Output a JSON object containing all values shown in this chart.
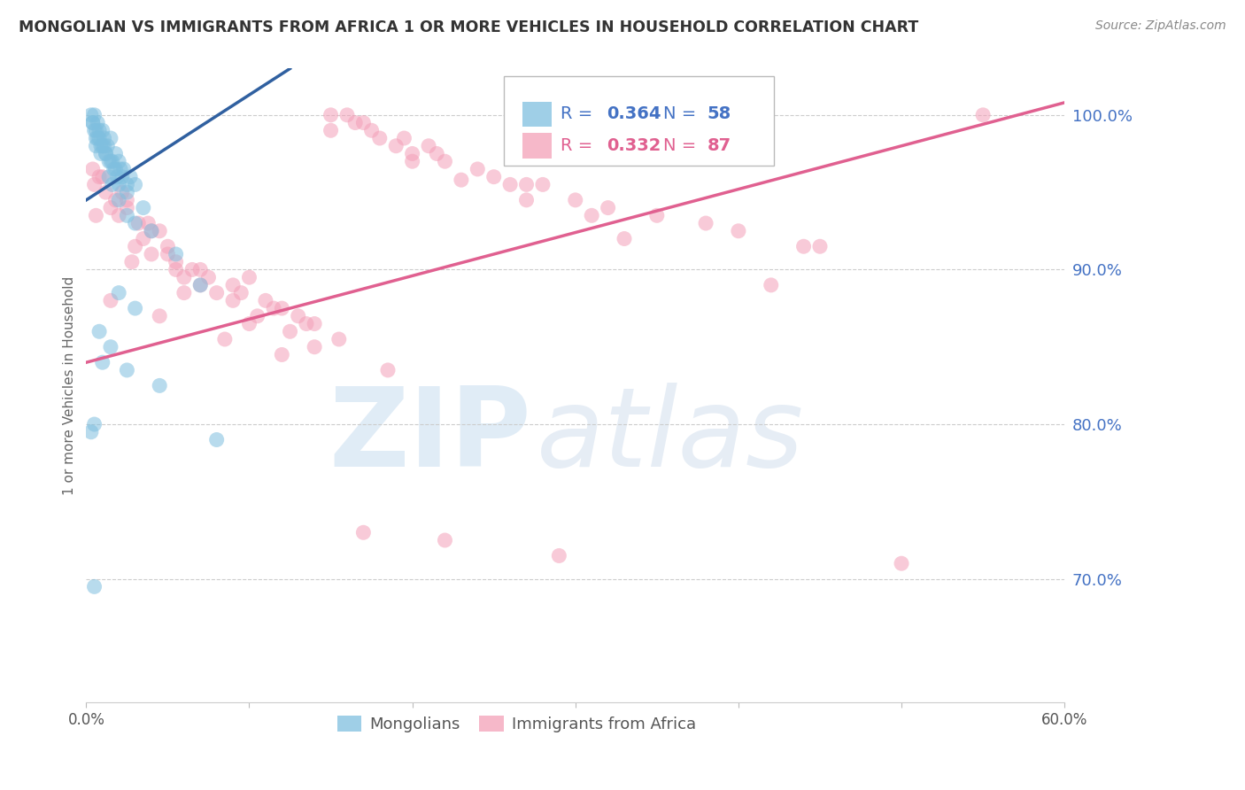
{
  "title": "MONGOLIAN VS IMMIGRANTS FROM AFRICA 1 OR MORE VEHICLES IN HOUSEHOLD CORRELATION CHART",
  "source": "Source: ZipAtlas.com",
  "ylabel": "1 or more Vehicles in Household",
  "xlim": [
    0.0,
    60.0
  ],
  "ylim": [
    62.0,
    103.0
  ],
  "yticks_right": [
    70.0,
    80.0,
    90.0,
    100.0
  ],
  "ytick_labels_right": [
    "70.0%",
    "80.0%",
    "90.0%",
    "100.0%"
  ],
  "xticks": [
    0.0,
    10.0,
    20.0,
    30.0,
    40.0,
    50.0,
    60.0
  ],
  "xtick_labels": [
    "0.0%",
    "",
    "",
    "",
    "",
    "",
    "60.0%"
  ],
  "legend_r1": "R = 0.364",
  "legend_n1": "N = 58",
  "legend_r2": "R = 0.332",
  "legend_n2": "N = 87",
  "blue_color": "#7fbfdf",
  "pink_color": "#f4a0b8",
  "blue_line_color": "#3060a0",
  "pink_line_color": "#e06090",
  "watermark_zip": "ZIP",
  "watermark_atlas": "atlas",
  "mongolians_label": "Mongolians",
  "africa_label": "Immigrants from Africa",
  "blue_scatter_x": [
    0.3,
    0.4,
    0.5,
    0.6,
    0.7,
    0.8,
    0.9,
    1.0,
    1.1,
    1.2,
    1.3,
    1.4,
    1.5,
    1.6,
    1.7,
    1.8,
    1.9,
    2.0,
    2.1,
    2.2,
    2.3,
    2.5,
    2.7,
    3.0,
    0.5,
    0.6,
    0.7,
    0.8,
    1.0,
    1.2,
    1.5,
    1.8,
    2.0,
    2.5,
    3.5,
    0.4,
    0.6,
    0.9,
    1.1,
    1.4,
    1.6,
    2.0,
    2.5,
    3.0,
    4.0,
    5.5,
    7.0,
    2.0,
    3.0,
    1.5,
    4.5,
    0.5,
    0.3,
    0.8,
    1.0,
    2.5,
    8.0,
    0.5
  ],
  "blue_scatter_y": [
    100.0,
    99.5,
    100.0,
    99.0,
    99.5,
    98.5,
    98.0,
    99.0,
    98.5,
    97.5,
    98.0,
    97.0,
    98.5,
    97.0,
    96.5,
    97.5,
    96.0,
    97.0,
    96.5,
    96.0,
    96.5,
    95.5,
    96.0,
    95.5,
    99.0,
    98.5,
    98.5,
    99.0,
    98.0,
    97.5,
    97.0,
    96.5,
    95.5,
    95.0,
    94.0,
    99.5,
    98.0,
    97.5,
    98.0,
    96.0,
    95.5,
    94.5,
    93.5,
    93.0,
    92.5,
    91.0,
    89.0,
    88.5,
    87.5,
    85.0,
    82.5,
    80.0,
    79.5,
    86.0,
    84.0,
    83.5,
    79.0,
    69.5
  ],
  "pink_scatter_x": [
    0.5,
    1.0,
    1.5,
    2.0,
    2.5,
    3.0,
    3.5,
    4.0,
    4.5,
    5.0,
    5.5,
    6.0,
    7.0,
    8.0,
    9.0,
    10.0,
    11.0,
    12.0,
    13.0,
    14.0,
    15.0,
    16.0,
    17.0,
    18.0,
    19.0,
    20.0,
    22.0,
    25.0,
    28.0,
    30.0,
    32.0,
    35.0,
    40.0,
    45.0,
    50.0,
    55.0,
    1.2,
    2.5,
    4.0,
    5.5,
    7.5,
    9.5,
    11.5,
    13.5,
    15.5,
    17.5,
    19.5,
    21.5,
    24.0,
    27.0,
    31.0,
    38.0,
    44.0,
    0.8,
    2.2,
    3.8,
    6.5,
    9.0,
    12.5,
    16.5,
    21.0,
    26.0,
    0.4,
    1.8,
    3.2,
    5.0,
    7.0,
    10.5,
    14.0,
    18.5,
    23.0,
    0.6,
    2.8,
    6.0,
    10.0,
    15.0,
    20.0,
    27.0,
    33.0,
    42.0,
    1.5,
    4.5,
    8.5,
    12.0,
    17.0,
    22.0,
    29.0
  ],
  "pink_scatter_y": [
    95.5,
    96.0,
    94.0,
    93.5,
    94.5,
    91.5,
    92.0,
    91.0,
    92.5,
    91.0,
    90.0,
    89.5,
    89.0,
    88.5,
    88.0,
    89.5,
    88.0,
    87.5,
    87.0,
    86.5,
    100.0,
    100.0,
    99.5,
    98.5,
    98.0,
    97.5,
    97.0,
    96.0,
    95.5,
    94.5,
    94.0,
    93.5,
    92.5,
    91.5,
    71.0,
    100.0,
    95.0,
    94.0,
    92.5,
    90.5,
    89.5,
    88.5,
    87.5,
    86.5,
    85.5,
    99.0,
    98.5,
    97.5,
    96.5,
    95.5,
    93.5,
    93.0,
    91.5,
    96.0,
    95.0,
    93.0,
    90.0,
    89.0,
    86.0,
    99.5,
    98.0,
    95.5,
    96.5,
    94.5,
    93.0,
    91.5,
    90.0,
    87.0,
    85.0,
    83.5,
    95.8,
    93.5,
    90.5,
    88.5,
    86.5,
    99.0,
    97.0,
    94.5,
    92.0,
    89.0,
    88.0,
    87.0,
    85.5,
    84.5,
    73.0,
    72.5,
    71.5
  ],
  "blue_trend_x": [
    0.0,
    12.5
  ],
  "blue_trend_y": [
    94.5,
    103.0
  ],
  "pink_trend_x": [
    0.0,
    60.0
  ],
  "pink_trend_y": [
    84.0,
    100.8
  ]
}
